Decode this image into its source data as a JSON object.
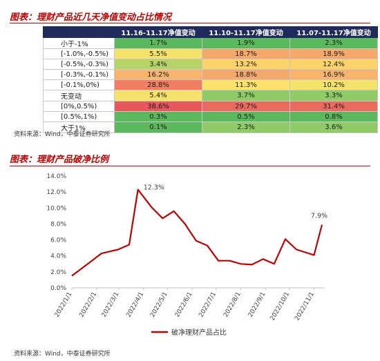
{
  "table_section": {
    "title": "图表：理财产品近几天净值变动占比情况",
    "source": "资料来源：Wind，中泰证券研究所",
    "columns": [
      "",
      "11.16-11.17净值变动",
      "11.10-11.17净值变动",
      "11.07-11.17净值变动"
    ],
    "rows": [
      {
        "label": "小于-1%",
        "cells": [
          {
            "v": "1.7%",
            "c": "#5cb85c"
          },
          {
            "v": "1.9%",
            "c": "#5cb85c"
          },
          {
            "v": "2.3%",
            "c": "#5cb85c"
          }
        ]
      },
      {
        "label": "[-1.0%,-0.5%)",
        "cells": [
          {
            "v": "5.5%",
            "c": "#f4e26a"
          },
          {
            "v": "18.7%",
            "c": "#f4a86a"
          },
          {
            "v": "18.9%",
            "c": "#f4a86a"
          }
        ]
      },
      {
        "label": "[-0.5%,-0.3%)",
        "cells": [
          {
            "v": "3.4%",
            "c": "#b5d36a"
          },
          {
            "v": "13.2%",
            "c": "#fbd36a"
          },
          {
            "v": "12.4%",
            "c": "#fbd36a"
          }
        ]
      },
      {
        "label": "[-0.3%,-0.1%)",
        "cells": [
          {
            "v": "16.2%",
            "c": "#f7b46a"
          },
          {
            "v": "18.8%",
            "c": "#f4a86a"
          },
          {
            "v": "16.9%",
            "c": "#f7b46a"
          }
        ]
      },
      {
        "label": "[-0.1%,0%)",
        "cells": [
          {
            "v": "28.8%",
            "c": "#f17e62"
          },
          {
            "v": "11.3%",
            "c": "#fde36a"
          },
          {
            "v": "10.2%",
            "c": "#f4e26a"
          }
        ]
      },
      {
        "label": "无变动",
        "cells": [
          {
            "v": "5.4%",
            "c": "#f4e26a"
          },
          {
            "v": "3.7%",
            "c": "#8fcb66"
          },
          {
            "v": "3.3%",
            "c": "#8fcb66"
          }
        ]
      },
      {
        "label": "[0%,0.5%)",
        "cells": [
          {
            "v": "38.6%",
            "c": "#e8585a"
          },
          {
            "v": "29.7%",
            "c": "#eb6a5e"
          },
          {
            "v": "31.4%",
            "c": "#eb6a5e"
          }
        ]
      },
      {
        "label": "[0.5%,1%)",
        "cells": [
          {
            "v": "0.3%",
            "c": "#5cb85c"
          },
          {
            "v": "0.5%",
            "c": "#5cb85c"
          },
          {
            "v": "0.8%",
            "c": "#5cb85c"
          }
        ]
      },
      {
        "label": "大于1%",
        "cells": [
          {
            "v": "0.1%",
            "c": "#5cb85c"
          },
          {
            "v": "2.3%",
            "c": "#8fcb66"
          },
          {
            "v": "3.6%",
            "c": "#8fcb66"
          }
        ]
      }
    ]
  },
  "chart_section": {
    "title": "图表：理财产品破净比例",
    "source": "资料来源：Wind，中泰证券研究所"
  },
  "chart_data": {
    "type": "line",
    "x_ticks": [
      "2022/1/1",
      "2022/2/1",
      "2022/3/1",
      "2022/4/1",
      "2022/5/1",
      "2022/6/1",
      "2022/7/1",
      "2022/8/1",
      "2022/9/1",
      "2022/10/1",
      "2022/11/1"
    ],
    "y_ticks": [
      "0.0%",
      "2.0%",
      "4.0%",
      "6.0%",
      "8.0%",
      "10.0%",
      "12.0%",
      "14.0%"
    ],
    "ylim": [
      0,
      14
    ],
    "series": [
      {
        "name": "破净理财产品占比",
        "color": "#c00000",
        "points": [
          [
            "2022-01-01",
            1.5
          ],
          [
            "2022-01-21",
            3.0
          ],
          [
            "2022-02-07",
            4.3
          ],
          [
            "2022-02-28",
            4.8
          ],
          [
            "2022-03-14",
            5.4
          ],
          [
            "2022-03-25",
            12.3
          ],
          [
            "2022-04-11",
            10.1
          ],
          [
            "2022-04-25",
            8.7
          ],
          [
            "2022-05-09",
            9.6
          ],
          [
            "2022-05-23",
            8.0
          ],
          [
            "2022-06-06",
            5.9
          ],
          [
            "2022-06-20",
            5.3
          ],
          [
            "2022-07-04",
            3.4
          ],
          [
            "2022-07-18",
            3.4
          ],
          [
            "2022-08-01",
            3.0
          ],
          [
            "2022-08-15",
            2.9
          ],
          [
            "2022-08-29",
            3.6
          ],
          [
            "2022-09-12",
            3.0
          ],
          [
            "2022-09-26",
            6.1
          ],
          [
            "2022-10-10",
            4.8
          ],
          [
            "2022-11-01",
            4.1
          ],
          [
            "2022-11-11",
            7.9
          ]
        ]
      }
    ],
    "annotations": [
      {
        "text": "12.3%",
        "x": "2022-03-25",
        "y": 12.3
      },
      {
        "text": "7.9%",
        "x": "2022-11-11",
        "y": 7.9
      }
    ],
    "legend": {
      "position": "bottom",
      "label": "破净理财产品占比"
    },
    "grid": false
  }
}
